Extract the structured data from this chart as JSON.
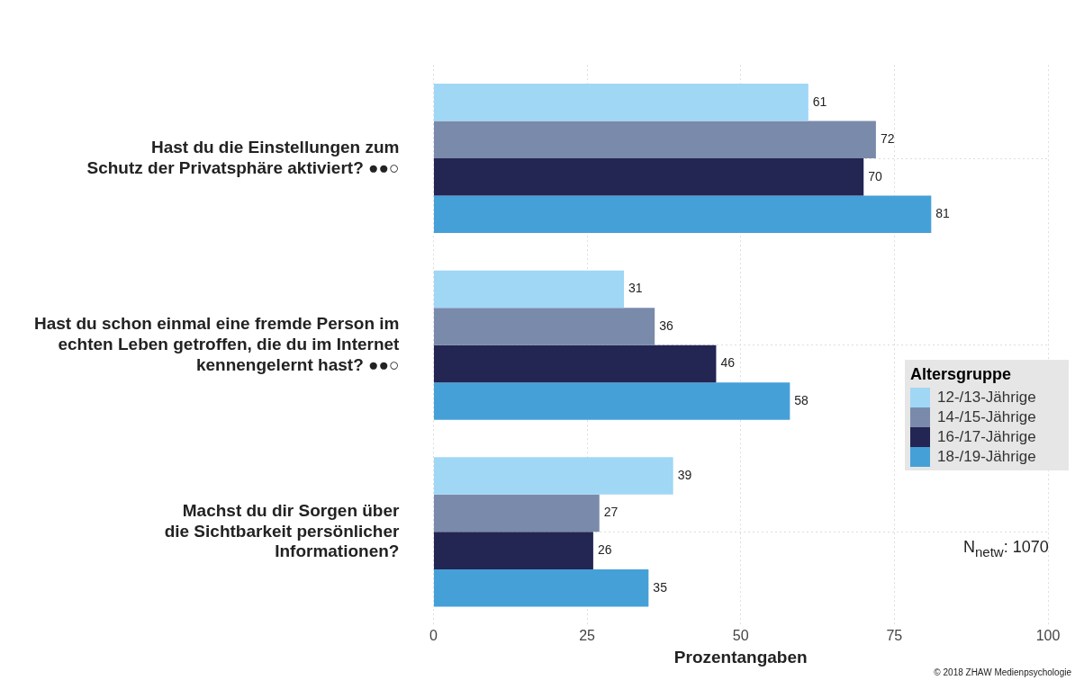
{
  "chart_data": {
    "type": "bar",
    "orientation": "horizontal",
    "categories": [
      "Hast du die Einstellungen zum\nSchutz der Privatsphäre aktiviert? ●●○",
      "Hast du schon einmal eine fremde Person im\nechten Leben getroffen, die du im Internet\nkennengelernt hast? ●●○",
      "Machst du dir Sorgen über\ndie Sichtbarkeit persönlicher\nInformationen?"
    ],
    "series": [
      {
        "name": "12-/13-Jährige",
        "color": "#9fd7f5",
        "values": [
          61,
          31,
          39
        ]
      },
      {
        "name": "14-/15-Jährige",
        "color": "#7a8aab",
        "values": [
          72,
          36,
          27
        ]
      },
      {
        "name": "16-/17-Jährige",
        "color": "#232553",
        "values": [
          70,
          46,
          26
        ]
      },
      {
        "name": "18-/19-Jährige",
        "color": "#45a0d8",
        "values": [
          81,
          58,
          35
        ]
      }
    ],
    "xlabel": "Prozentangaben",
    "xlim": [
      0,
      100
    ],
    "xticks": [
      0,
      25,
      50,
      75,
      100
    ],
    "legend_title": "Altersgruppe",
    "legend": "right",
    "grid": true,
    "data_labels": true,
    "annotations": [
      "N$_{netw}$: 1070",
      "© 2018 ZHAW Medienpsychologie"
    ]
  }
}
